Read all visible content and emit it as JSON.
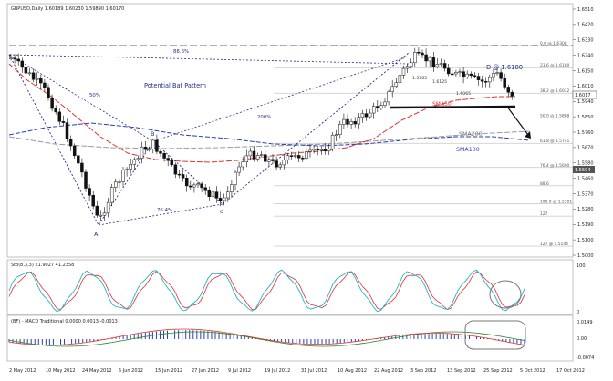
{
  "window": {
    "header": "GBPUSD,Daily  1.60189 1.60230 1.59890 1.60170"
  },
  "price_axis": {
    "labels": [
      "1.6510",
      "1.6420",
      "1.6330",
      "1.6240",
      "1.6150",
      "1.6010",
      "1.5940",
      "1.5850",
      "1.5760",
      "1.5670",
      "1.5580",
      "1.5460",
      "1.5370",
      "1.5280",
      "1.5190",
      "1.5100",
      "1.5000"
    ],
    "current_price": "1.6017",
    "level_tag": "1.5594"
  },
  "date_axis": {
    "labels": [
      "2 May 2012",
      "10 May 2012",
      "24 May 2012",
      "5 Jun 2012",
      "15 Jun 2012",
      "27 Jun 2012",
      "9 Jul 2012",
      "19 Jul 2012",
      "31 Jul 2012",
      "10 Aug 2012",
      "22 Aug 2012",
      "3 Sep 2012",
      "13 Sep 2012",
      "25 Sep 2012",
      "5 Oct 2012",
      "17 Oct 2012"
    ]
  },
  "fibonacci": {
    "levels": [
      {
        "label": "0.0 @ 1.6308",
        "value": 1.6308
      },
      {
        "label": "23.6 @ 1.6180",
        "value": 1.618
      },
      {
        "label": "38.2 @ 1.6032",
        "value": 1.6032
      },
      {
        "label": "50.0 @ 1.5888",
        "value": 1.5888
      },
      {
        "label": "61.8 @ 1.5741",
        "value": 1.5741
      },
      {
        "label": "76.4 @ 1.5600",
        "value": 1.56
      },
      {
        "label": "88.6",
        "value": 1.5494
      },
      {
        "label": "100.0 @ 1.5391",
        "value": 1.5391
      },
      {
        "label": "127",
        "value": 1.5318
      },
      {
        "label": "127 @ 1.5144",
        "value": 1.5144
      }
    ]
  },
  "annotations": {
    "title": "Potential Bat Pattern",
    "pct_886": "88.6%",
    "pct_50": "50%",
    "pct_200": "200%",
    "pct_764": "76.4%",
    "point_a": "A",
    "point_b": "B",
    "point_c": "c",
    "point_d": "D @ 1.6180",
    "sma50": "SMA50",
    "sma200": "SMA200",
    "sma100": "SMA100",
    "price_1": "1.5765",
    "price_2": "1.6125",
    "price_3": "1.6065"
  },
  "stochastic": {
    "header": "Sto(8,3,3) 21.9027 41.2358",
    "scale_top": "100",
    "scale_bottom": "0"
  },
  "macd": {
    "header": "(BF) - MACD Traditional 0.0000 0.0013 -0.0013",
    "scale_top": "0.0149",
    "scale_mid": "0.00",
    "scale_bottom": "-0.0074"
  },
  "colors": {
    "sma50": "#e03030",
    "sma100": "#2a3fb0",
    "sma200": "#9a9a9a",
    "pattern": "#1f2d8a",
    "candle": "#111111",
    "stoch_main": "#22b4c8",
    "stoch_signal": "#e03030",
    "macd_hist": "#2a3fb0",
    "macd_signal": "#2a8a2a"
  }
}
